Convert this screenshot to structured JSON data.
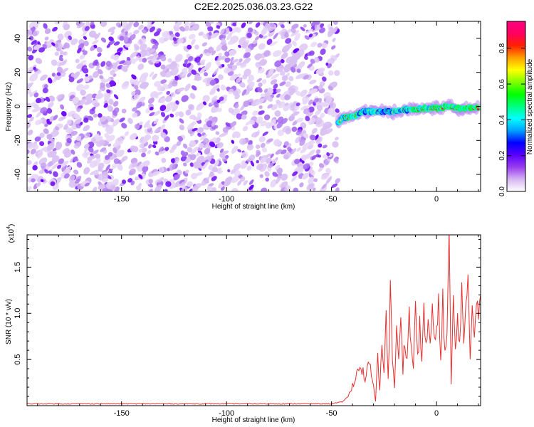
{
  "title": "C2E2.2025.036.03.23.G22",
  "chart_data": [
    {
      "type": "heatmap",
      "xlabel": "Height of straight line (km)",
      "ylabel": "Frequency (Hz)",
      "xlim": [
        -195,
        21
      ],
      "ylim": [
        -50,
        50
      ],
      "xticks": [
        -150,
        -100,
        -50,
        0
      ],
      "yticks": [
        -40,
        -20,
        0,
        20,
        40
      ],
      "colorbar": {
        "label": "Normalized spectral amplitude",
        "range": [
          0.0,
          0.95
        ],
        "ticks": [
          0.0,
          0.2,
          0.4,
          0.6,
          0.8
        ],
        "colors": [
          "#ffffff",
          "#d6b4f2",
          "#9a3df0",
          "#5a00ff",
          "#0000ff",
          "#00a0ff",
          "#00ffff",
          "#00ff80",
          "#00ff00",
          "#80ff00",
          "#ffff00",
          "#ffa000",
          "#ff2000",
          "#ff0060",
          "#ff0080"
        ]
      },
      "noise_region": {
        "x_range": [
          -195,
          -47
        ],
        "f_range": [
          -50,
          50
        ],
        "amplitude_range": [
          0.0,
          0.25
        ]
      },
      "signal_track": {
        "x": [
          -47,
          -45,
          -40,
          -35,
          -30,
          -25,
          -20,
          -15,
          -10,
          -5,
          0,
          5,
          10,
          15,
          20
        ],
        "frequency": [
          -10,
          -7,
          -6,
          -3,
          -3,
          -3,
          -3,
          -2,
          -2,
          -1,
          -1,
          0,
          -1,
          -1,
          -1
        ],
        "amplitude": [
          0.5,
          0.7,
          0.85,
          0.6,
          0.75,
          0.55,
          0.7,
          0.65,
          0.85,
          0.75,
          0.9,
          0.85,
          0.8,
          0.9,
          0.85
        ]
      }
    },
    {
      "type": "line",
      "xlabel": "Height of straight line (km)",
      "ylabel": "SNR (10 * v/v)",
      "y_scale_label": "(x10",
      "y_scale_exp": "4",
      "xlim": [
        -195,
        21
      ],
      "ylim": [
        0,
        1.85
      ],
      "xticks": [
        -150,
        -100,
        -50,
        0
      ],
      "yticks": [
        0.5,
        1.0,
        1.5
      ],
      "ytick_labels": [
        "0.5",
        "1.0",
        "1.5"
      ],
      "series": [
        {
          "color": "#e83030",
          "x": [
            -195,
            -170,
            -150,
            -120,
            -100,
            -80,
            -60,
            -50,
            -45,
            -42,
            -40,
            -38,
            -36,
            -34,
            -32,
            -30,
            -29,
            -28,
            -27,
            -26,
            -25,
            -24,
            -23,
            -22,
            -21,
            -20,
            -19,
            -18,
            -17,
            -16,
            -15,
            -14,
            -13,
            -12,
            -11,
            -10,
            -9,
            -8,
            -7,
            -6,
            -5,
            -4,
            -3,
            -2,
            -1,
            0,
            1,
            2,
            3,
            4,
            5,
            6,
            7,
            8,
            9,
            10,
            11,
            12,
            13,
            14,
            15,
            16,
            17,
            18,
            19,
            20,
            21
          ],
          "y": [
            0.02,
            0.02,
            0.02,
            0.02,
            0.02,
            0.02,
            0.02,
            0.02,
            0.04,
            0.1,
            0.22,
            0.35,
            0.42,
            0.3,
            0.45,
            0.2,
            0.05,
            0.5,
            0.15,
            0.75,
            0.4,
            0.95,
            0.3,
            1.25,
            0.55,
            0.2,
            0.8,
            0.45,
            1.05,
            0.4,
            0.75,
            0.5,
            1.0,
            0.6,
            0.45,
            1.05,
            0.55,
            0.85,
            0.55,
            1.0,
            0.6,
            0.95,
            0.65,
            1.05,
            0.7,
            0.75,
            1.1,
            0.5,
            1.2,
            0.55,
            0.75,
            1.85,
            0.22,
            1.2,
            0.55,
            0.95,
            0.7,
            1.3,
            0.6,
            1.0,
            1.4,
            0.55,
            1.1,
            0.75,
            1.2,
            1.05,
            1.2
          ]
        }
      ]
    }
  ]
}
